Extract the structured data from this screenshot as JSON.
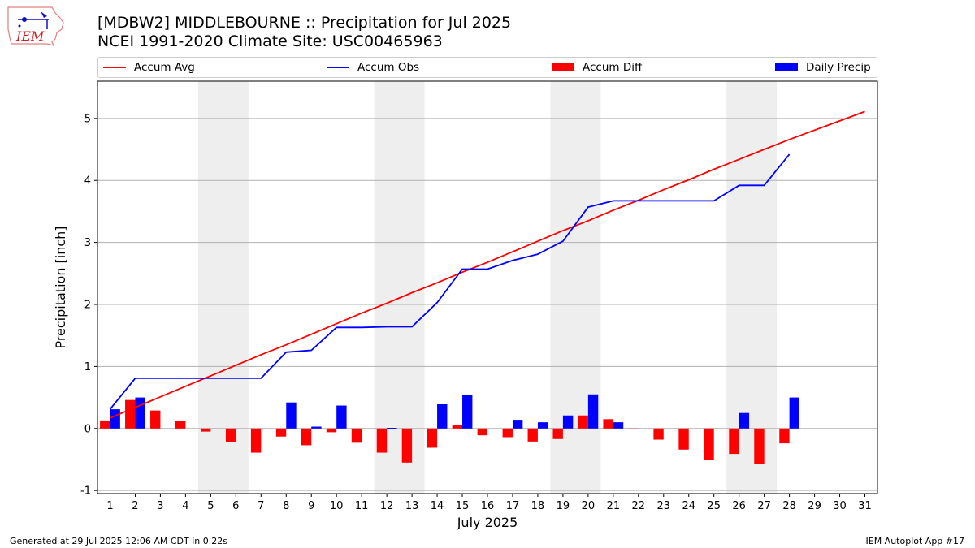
{
  "header": {
    "title_line1": "[MDBW2] MIDDLEBOURNE :: Precipitation for Jul 2025",
    "title_line2": "NCEI 1991-2020 Climate Site: USC00465963"
  },
  "logo": {
    "text": "IEM",
    "color": "#d42020",
    "icon": "iowa-state-outline-icon"
  },
  "legend": [
    {
      "label": "Accum Avg",
      "color": "#ff0000",
      "kind": "line"
    },
    {
      "label": "Accum Obs",
      "color": "#0000ff",
      "kind": "line"
    },
    {
      "label": "Accum Diff",
      "color": "#ff0000",
      "kind": "patch"
    },
    {
      "label": "Daily Precip",
      "color": "#0000ff",
      "kind": "patch"
    }
  ],
  "footer": {
    "left": "Generated at 29 Jul 2025 12:06 AM CDT in 0.22s",
    "right": "IEM Autoplot App #17"
  },
  "chart_data": {
    "type": "bar",
    "title": "[MDBW2] MIDDLEBOURNE :: Precipitation for Jul 2025",
    "xlabel": "July 2025",
    "ylabel": "Precipitation [inch]",
    "xlim": [
      0.5,
      31.5
    ],
    "ylim": [
      -1.05,
      5.6
    ],
    "yticks": [
      -1,
      0,
      1,
      2,
      3,
      4,
      5
    ],
    "grid": "horizontal",
    "legend_position": "top",
    "shaded_weekend_days": [
      [
        5,
        6
      ],
      [
        12,
        13
      ],
      [
        19,
        20
      ],
      [
        26,
        27
      ]
    ],
    "categories": [
      "1",
      "2",
      "3",
      "4",
      "5",
      "6",
      "7",
      "8",
      "9",
      "10",
      "11",
      "12",
      "13",
      "14",
      "15",
      "16",
      "17",
      "18",
      "19",
      "20",
      "21",
      "22",
      "23",
      "24",
      "25",
      "26",
      "27",
      "28",
      "29",
      "30",
      "31"
    ],
    "series": [
      {
        "name": "Accum Avg",
        "kind": "line",
        "color": "#ff0000",
        "values": [
          0.17,
          0.34,
          0.51,
          0.68,
          0.85,
          1.02,
          1.19,
          1.35,
          1.52,
          1.69,
          1.86,
          2.02,
          2.19,
          2.35,
          2.52,
          2.68,
          2.85,
          3.02,
          3.19,
          3.35,
          3.52,
          3.68,
          3.85,
          4.01,
          4.18,
          4.34,
          4.5,
          4.66,
          4.81,
          4.96,
          5.11
        ]
      },
      {
        "name": "Accum Obs",
        "kind": "line",
        "color": "#0000ff",
        "values": [
          0.31,
          0.81,
          0.81,
          0.81,
          0.81,
          0.81,
          0.81,
          1.23,
          1.26,
          1.63,
          1.63,
          1.64,
          1.64,
          2.03,
          2.57,
          2.57,
          2.71,
          2.81,
          3.02,
          3.57,
          3.67,
          3.67,
          3.67,
          3.67,
          3.67,
          3.92,
          3.92,
          4.42,
          null,
          null,
          null
        ]
      },
      {
        "name": "Accum Diff",
        "kind": "bar",
        "color": "#ff0000",
        "values": [
          0.13,
          0.46,
          0.29,
          0.12,
          -0.05,
          -0.22,
          -0.39,
          -0.13,
          -0.27,
          -0.06,
          -0.23,
          -0.39,
          -0.55,
          -0.31,
          0.05,
          -0.11,
          -0.14,
          -0.21,
          -0.17,
          0.21,
          0.15,
          -0.01,
          -0.18,
          -0.34,
          -0.51,
          -0.41,
          -0.57,
          -0.24,
          null,
          null,
          null
        ]
      },
      {
        "name": "Daily Precip",
        "kind": "bar",
        "color": "#0000ff",
        "values": [
          0.31,
          0.5,
          0.0,
          0.0,
          0.0,
          0.0,
          0.0,
          0.42,
          0.03,
          0.37,
          0.0,
          0.01,
          0.0,
          0.39,
          0.54,
          0.0,
          0.14,
          0.1,
          0.21,
          0.55,
          0.1,
          0.0,
          0.0,
          0.0,
          0.0,
          0.25,
          0.0,
          0.5,
          null,
          null,
          null
        ]
      }
    ]
  }
}
